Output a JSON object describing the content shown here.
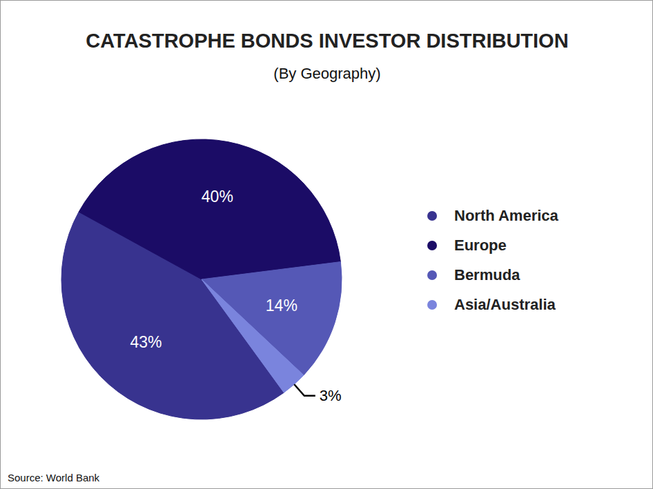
{
  "chart_data": {
    "type": "pie",
    "title": "CATASTROPHE BONDS INVESTOR DISTRIBUTION",
    "subtitle": "(By Geography)",
    "categories": [
      "North America",
      "Europe",
      "Bermuda",
      "Asia/Australia"
    ],
    "values": [
      43,
      40,
      14,
      3
    ],
    "value_labels": [
      "43%",
      "40%",
      "14%",
      "3%"
    ],
    "colors": [
      "#38338f",
      "#1b0c66",
      "#5558b6",
      "#7a84dd"
    ],
    "data_labels": true,
    "legend": "right",
    "source": "Source: World Bank"
  }
}
